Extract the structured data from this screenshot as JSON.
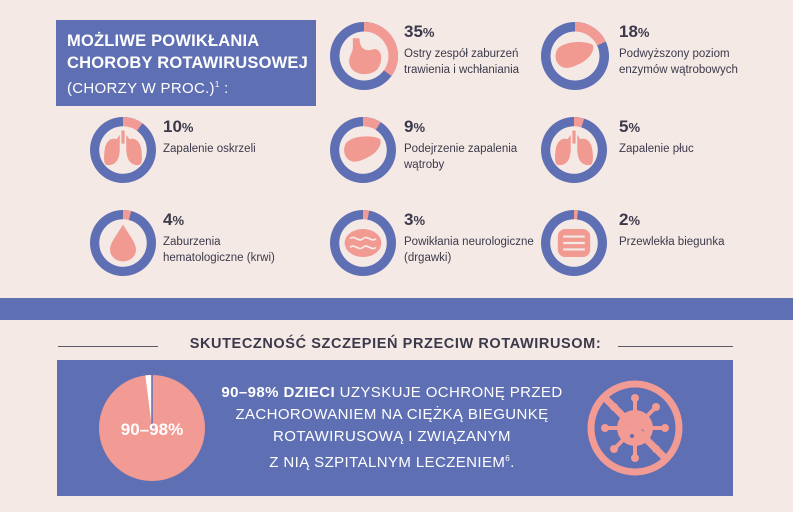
{
  "header": {
    "title_line1": "MOŻLIWE POWIKŁANIA",
    "title_line2": "CHOROBY ROTAWIRUSOWEJ",
    "title_line3": "(CHORZY W PROC.)",
    "title_sup": "1",
    "title_colon": " :"
  },
  "colors": {
    "ring": "#5f6fb3",
    "slice": "#f29a94",
    "inner": "#f5e9e6",
    "organ": "#f09a92"
  },
  "chart_data": {
    "type": "pie",
    "title": "MOŻLIWE POWIKŁANIA CHOROBY ROTAWIRUSOWEJ (CHORZY W PROC.)",
    "unit": "%",
    "items": [
      {
        "value": 35,
        "value_text": "35",
        "sign": "%",
        "label_lines": [
          "Ostry zespół zaburzeń",
          "trawienia i wchłaniania"
        ],
        "icon": "stomach-icon"
      },
      {
        "value": 18,
        "value_text": "18",
        "sign": "%",
        "label_lines": [
          "Podwyższony poziom",
          "enzymów wątrobowych"
        ],
        "icon": "liver-icon"
      },
      {
        "value": 10,
        "value_text": "10",
        "sign": "%",
        "label_lines": [
          "Zapalenie oskrzeli"
        ],
        "icon": "lungs-icon"
      },
      {
        "value": 9,
        "value_text": "9",
        "sign": "%",
        "label_lines": [
          "Podejrzenie zapalenia",
          "wątroby"
        ],
        "icon": "liver-icon"
      },
      {
        "value": 5,
        "value_text": "5",
        "sign": "%",
        "label_lines": [
          "Zapalenie płuc"
        ],
        "icon": "lungs-icon"
      },
      {
        "value": 4,
        "value_text": "4",
        "sign": "%",
        "label_lines": [
          "Zaburzenia",
          "hematologiczne (krwi)"
        ],
        "icon": "blood-drop-icon"
      },
      {
        "value": 3,
        "value_text": "3",
        "sign": "%",
        "label_lines": [
          "Powikłania neurologiczne",
          "(drgawki)"
        ],
        "icon": "brain-icon"
      },
      {
        "value": 2,
        "value_text": "2",
        "sign": "%",
        "label_lines": [
          "Przewlekła biegunka"
        ],
        "icon": "intestines-icon"
      }
    ]
  },
  "efficacy": {
    "title": "SKUTECZNOŚĆ SZCZEPIEŃ PRZECIW ROTAWIRUSOM:",
    "pie_label": "90–98%",
    "pie_value": 98,
    "text_bold": "90–98% DZIECI",
    "text_line1_rest": " UZYSKUJE OCHRONĘ PRZED",
    "text_line2": "ZACHOROWANIEM NA CIĘŻKĄ BIEGUNKĘ",
    "text_line3": "ROTAWIRUSOWĄ I ZWIĄZANYM",
    "text_line4": "Z NIĄ SZPITALNYM LECZENIEM",
    "text_sup": "6",
    "text_end": "."
  }
}
